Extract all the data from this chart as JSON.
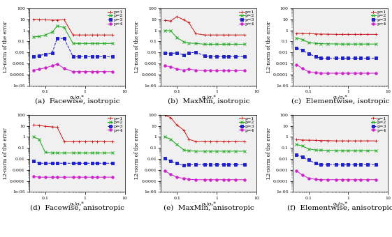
{
  "x_values": [
    0.05,
    0.07,
    0.1,
    0.15,
    0.2,
    0.3,
    0.5,
    0.7,
    1.0,
    1.5,
    2.0,
    3.0,
    5.0
  ],
  "subplots": [
    {
      "label": "(a)  Facewise, isotropic",
      "p1": [
        10.0,
        9.5,
        9.0,
        8.5,
        8.8,
        9.0,
        0.38,
        0.38,
        0.38,
        0.38,
        0.38,
        0.38,
        0.38
      ],
      "p2": [
        0.25,
        0.28,
        0.38,
        0.7,
        2.5,
        1.8,
        0.065,
        0.065,
        0.065,
        0.065,
        0.065,
        0.065,
        0.065
      ],
      "p3": [
        0.004,
        0.005,
        0.007,
        0.009,
        0.2,
        0.18,
        0.004,
        0.004,
        0.004,
        0.004,
        0.004,
        0.004,
        0.004
      ],
      "p4": [
        0.00025,
        0.0003,
        0.0004,
        0.0006,
        0.0009,
        0.00035,
        0.00018,
        0.00018,
        0.00018,
        0.00018,
        0.00018,
        0.00018,
        0.00018
      ]
    },
    {
      "label": "(b)  MaxMin, isotropic",
      "p1": [
        8.0,
        7.0,
        18.0,
        9.0,
        5.0,
        0.5,
        0.38,
        0.38,
        0.38,
        0.38,
        0.38,
        0.38,
        0.38
      ],
      "p2": [
        1.0,
        0.9,
        0.22,
        0.09,
        0.07,
        0.065,
        0.055,
        0.055,
        0.055,
        0.055,
        0.055,
        0.055,
        0.055
      ],
      "p3": [
        0.009,
        0.008,
        0.009,
        0.006,
        0.009,
        0.01,
        0.005,
        0.004,
        0.004,
        0.004,
        0.004,
        0.004,
        0.004
      ],
      "p4": [
        0.0006,
        0.0005,
        0.0003,
        0.00025,
        0.0003,
        0.00025,
        0.00022,
        0.00022,
        0.00022,
        0.00022,
        0.00022,
        0.00022,
        0.00022
      ]
    },
    {
      "label": "(c)  Elementwise, isotropic",
      "p1": [
        0.55,
        0.52,
        0.5,
        0.48,
        0.46,
        0.45,
        0.43,
        0.43,
        0.43,
        0.43,
        0.43,
        0.43,
        0.43
      ],
      "p2": [
        0.2,
        0.15,
        0.08,
        0.065,
        0.062,
        0.06,
        0.058,
        0.057,
        0.057,
        0.057,
        0.057,
        0.057,
        0.057
      ],
      "p3": [
        0.025,
        0.015,
        0.008,
        0.004,
        0.003,
        0.003,
        0.003,
        0.003,
        0.003,
        0.003,
        0.003,
        0.003,
        0.003
      ],
      "p4": [
        0.0008,
        0.00035,
        0.00018,
        0.00014,
        0.00013,
        0.00013,
        0.00013,
        0.00013,
        0.00013,
        0.00013,
        0.00013,
        0.00013,
        0.00013
      ]
    },
    {
      "label": "(d)  Facewise, anisotropic",
      "p1": [
        12.0,
        11.0,
        9.0,
        8.0,
        7.5,
        0.38,
        0.38,
        0.38,
        0.38,
        0.38,
        0.38,
        0.38,
        0.38
      ],
      "p2": [
        1.0,
        0.6,
        0.04,
        0.035,
        0.035,
        0.035,
        0.035,
        0.035,
        0.035,
        0.035,
        0.035,
        0.035,
        0.035
      ],
      "p3": [
        0.006,
        0.004,
        0.004,
        0.004,
        0.004,
        0.004,
        0.004,
        0.004,
        0.004,
        0.004,
        0.004,
        0.004,
        0.004
      ],
      "p4": [
        0.00025,
        0.00022,
        0.00022,
        0.00022,
        0.00022,
        0.00022,
        0.00022,
        0.00022,
        0.00022,
        0.00022,
        0.00022,
        0.00022,
        0.00022
      ]
    },
    {
      "label": "(e)  MaxMin, anisotropic",
      "p1": [
        90.0,
        55.0,
        12.0,
        4.0,
        0.6,
        0.38,
        0.38,
        0.38,
        0.38,
        0.38,
        0.38,
        0.38,
        0.38
      ],
      "p2": [
        1.0,
        0.6,
        0.2,
        0.065,
        0.055,
        0.05,
        0.05,
        0.05,
        0.05,
        0.05,
        0.05,
        0.05,
        0.05
      ],
      "p3": [
        0.012,
        0.006,
        0.004,
        0.0025,
        0.003,
        0.003,
        0.003,
        0.003,
        0.003,
        0.003,
        0.003,
        0.003,
        0.003
      ],
      "p4": [
        0.0008,
        0.0004,
        0.00022,
        0.00017,
        0.00014,
        0.00013,
        0.00013,
        0.00013,
        0.00013,
        0.00013,
        0.00013,
        0.00013,
        0.00013
      ]
    },
    {
      "label": "(f)  Elementwise, anisotropic",
      "p1": [
        0.55,
        0.52,
        0.5,
        0.48,
        0.46,
        0.45,
        0.43,
        0.43,
        0.43,
        0.43,
        0.43,
        0.43,
        0.43
      ],
      "p2": [
        0.2,
        0.15,
        0.08,
        0.065,
        0.062,
        0.06,
        0.058,
        0.057,
        0.057,
        0.057,
        0.057,
        0.057,
        0.057
      ],
      "p3": [
        0.025,
        0.015,
        0.008,
        0.004,
        0.003,
        0.003,
        0.003,
        0.003,
        0.003,
        0.003,
        0.003,
        0.003,
        0.003
      ],
      "p4": [
        0.0008,
        0.00035,
        0.00018,
        0.00014,
        0.00013,
        0.00013,
        0.00013,
        0.00013,
        0.00013,
        0.00013,
        0.00013,
        0.00013,
        0.00013
      ]
    }
  ],
  "colors": {
    "p1": "#cc2222",
    "p2": "#22aa22",
    "p3": "#2222cc",
    "p4": "#cc22cc"
  },
  "markers": {
    "p1": "+",
    "p2": "x",
    "p3": "s",
    "p4": "o"
  },
  "linestyles": {
    "p1": "-",
    "p2": "-",
    "p3": "--",
    "p4": "-"
  },
  "ylabel": "L2-norm of the error",
  "xlabel": "σₑ/σₑ*",
  "caption_fontsize": 7.5,
  "axis_fontsize": 5,
  "tick_fontsize": 4.5,
  "legend_fontsize": 4.5,
  "bg_color": "#f0f0f0"
}
